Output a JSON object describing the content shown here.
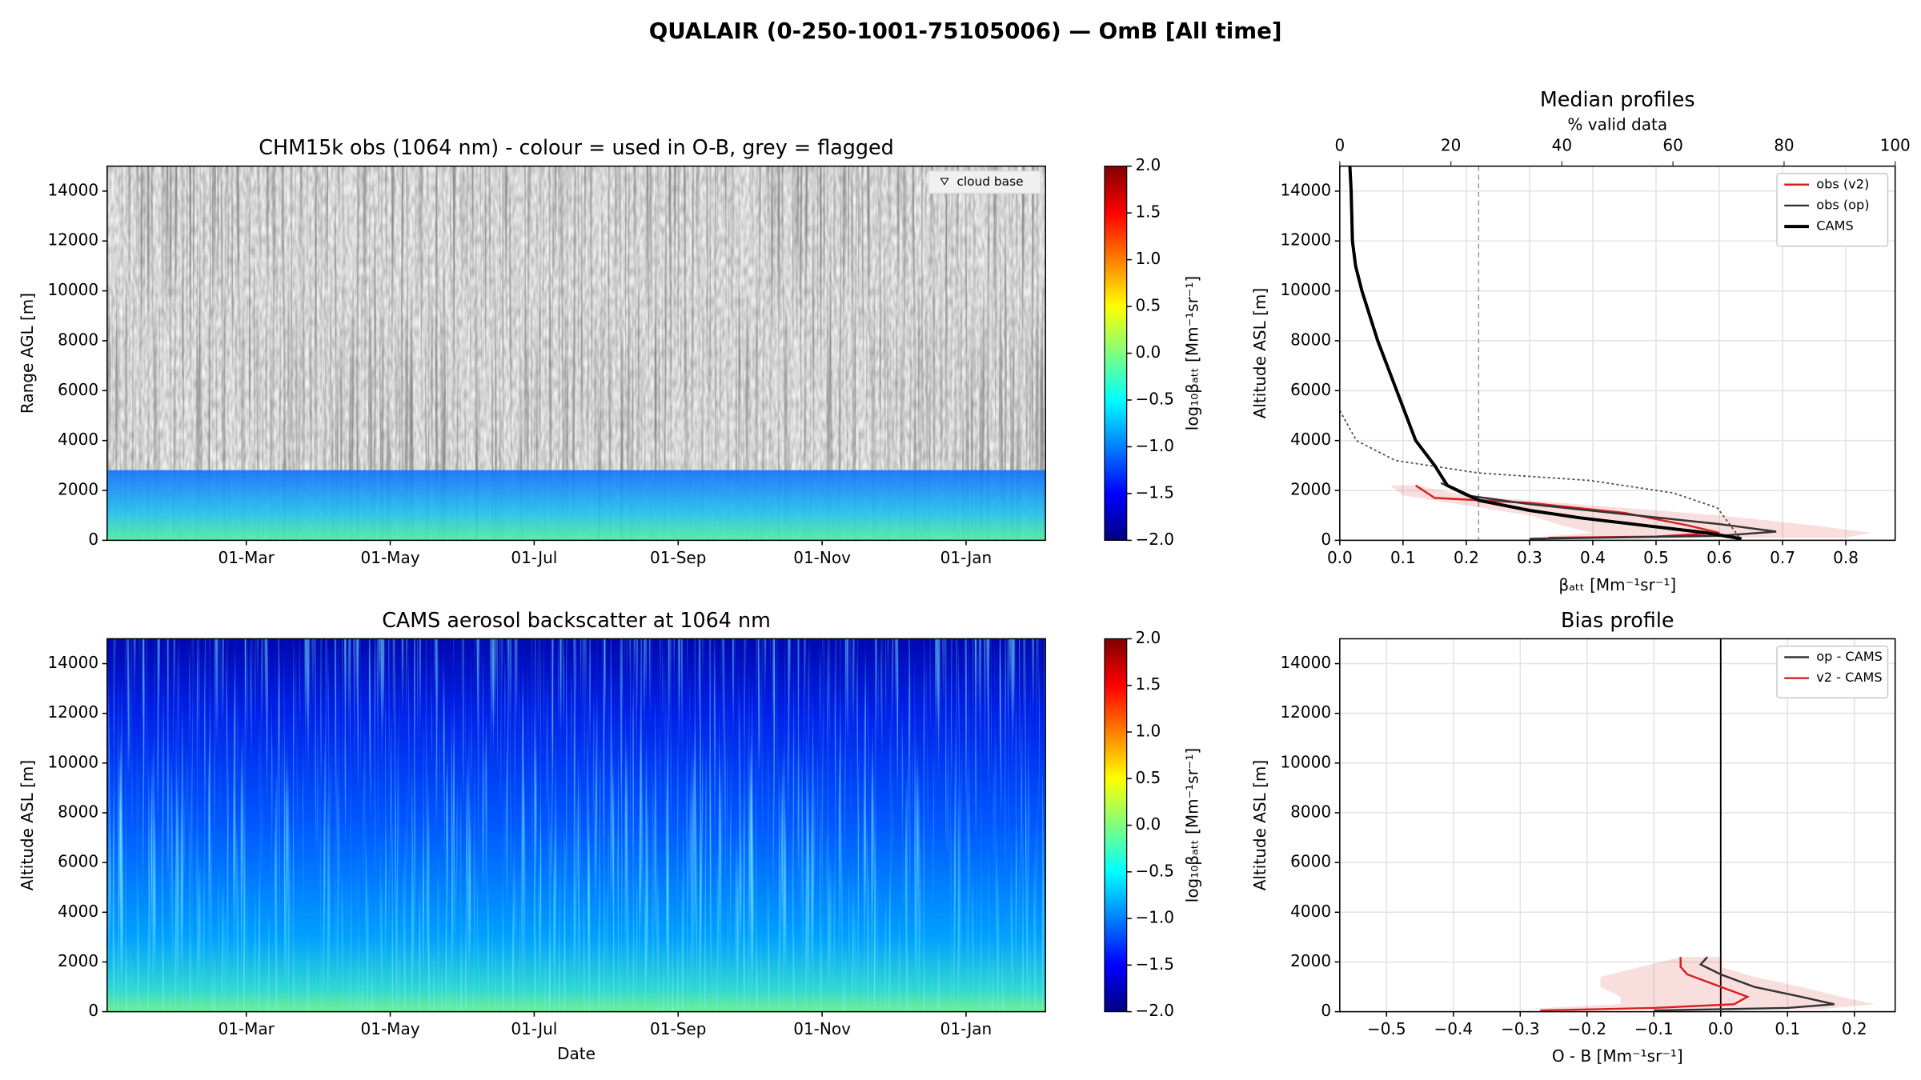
{
  "title": "QUALAIR (0-250-1001-75105006) — OmB [All time]",
  "chart_data": [
    {
      "type": "heatmap",
      "title": "CHM15k obs (1064 nm) - colour = used in O-B, grey = flagged",
      "ylabel": "Range AGL [m]",
      "ylim": [
        0,
        15000
      ],
      "yticks": [
        0,
        2000,
        4000,
        6000,
        8000,
        10000,
        12000,
        14000
      ],
      "xticks": [
        "01-Mar",
        "01-May",
        "01-Jul",
        "01-Sep",
        "01-Nov",
        "01-Jan"
      ],
      "legend": {
        "label": "cloud base",
        "position": "upper right"
      },
      "colorbar": {
        "label": "log₁₀βₐₜₜ [Mm⁻¹sr⁻¹]",
        "clim": [
          -2,
          2
        ],
        "colormap": "jet",
        "ticks": [
          {
            "value": -2,
            "label": "−2.0"
          },
          {
            "value": -1.5,
            "label": "−1.5"
          },
          {
            "value": -1,
            "label": "−1.0"
          },
          {
            "value": -0.5,
            "label": "−0.5"
          },
          {
            "value": 0,
            "label": "0.0"
          },
          0.5,
          {
            "value": 1,
            "label": "1.0"
          },
          1.5,
          {
            "value": 2,
            "label": "2.0"
          }
        ]
      }
    },
    {
      "type": "heatmap",
      "title": "CAMS aerosol backscatter at 1064 nm",
      "xlabel": "Date",
      "ylabel": "Altitude ASL [m]",
      "ylim": [
        0,
        15000
      ],
      "yticks": [
        0,
        2000,
        4000,
        6000,
        8000,
        10000,
        12000,
        14000
      ],
      "xticks": [
        "01-Mar",
        "01-May",
        "01-Jul",
        "01-Sep",
        "01-Nov",
        "01-Jan"
      ],
      "colorbar": {
        "label": "log₁₀βₐₜₜ [Mm⁻¹sr⁻¹]",
        "clim": [
          -2,
          2
        ],
        "colormap": "jet",
        "ticks": [
          {
            "value": -2,
            "label": "−2.0"
          },
          {
            "value": -1.5,
            "label": "−1.5"
          },
          {
            "value": -1,
            "label": "−1.0"
          },
          {
            "value": -0.5,
            "label": "−0.5"
          },
          {
            "value": 0,
            "label": "0.0"
          },
          0.5,
          {
            "value": 1,
            "label": "1.0"
          },
          1.5,
          {
            "value": 2,
            "label": "2.0"
          }
        ]
      }
    },
    {
      "type": "line",
      "title": "Median profiles",
      "xlabel": "βₐₜₜ [Mm⁻¹sr⁻¹]",
      "ylabel": "Altitude ASL [m]",
      "xlim": [
        0,
        0.878
      ],
      "xticks": [
        {
          "value": 0,
          "label": "0.0"
        },
        0.1,
        0.2,
        0.3,
        0.4,
        0.5,
        0.6,
        0.7,
        0.8
      ],
      "ylim": [
        0,
        15000
      ],
      "yticks": [
        0,
        2000,
        4000,
        6000,
        8000,
        10000,
        12000,
        14000
      ],
      "grid": true,
      "legend": "upper right",
      "x2label": "% valid data",
      "x2lim": [
        0,
        100
      ],
      "x2ticks": [
        0,
        20,
        40,
        60,
        80,
        100
      ],
      "threshold": 25,
      "valid_data": {
        "color": "#555555",
        "x2": [
          0,
          3,
          10,
          25,
          45,
          60,
          68,
          70,
          72
        ],
        "y": [
          5200,
          4000,
          3200,
          2700,
          2400,
          1900,
          1300,
          700,
          100
        ]
      },
      "series": [
        {
          "name": "obs (v2)",
          "color": "#d62020",
          "linewidth": 1.6,
          "x": [
            0.12,
            0.15,
            0.3,
            0.45,
            0.55,
            0.6,
            0.5,
            0.33
          ],
          "y": [
            2200,
            1700,
            1500,
            1100,
            600,
            300,
            150,
            100
          ],
          "band": {
            "x_low": [
              0.08,
              0.1,
              0.2,
              0.3,
              0.35,
              0.4,
              0.3
            ],
            "x_high": [
              0.12,
              0.2,
              0.4,
              0.6,
              0.75,
              0.84,
              0.8
            ],
            "y": [
              2200,
              1800,
              1400,
              1000,
              600,
              300,
              100
            ]
          }
        },
        {
          "name": "obs (op)",
          "color": "#333333",
          "linewidth": 1.6,
          "x": [
            0.16,
            0.2,
            0.3,
            0.45,
            0.6,
            0.69,
            0.6,
            0.3
          ],
          "y": [
            2300,
            1800,
            1450,
            1050,
            650,
            350,
            180,
            60
          ]
        },
        {
          "name": "CAMS",
          "color": "#000000",
          "linewidth": 2.6,
          "x": [
            0.635,
            0.58,
            0.48,
            0.38,
            0.3,
            0.22,
            0.17,
            0.15,
            0.12,
            0.09,
            0.06,
            0.035,
            0.025,
            0.02,
            0.018,
            0.016
          ],
          "y": [
            60,
            300,
            600,
            900,
            1200,
            1600,
            2200,
            3000,
            4000,
            6000,
            8000,
            10000,
            11000,
            12000,
            14000,
            15000
          ]
        }
      ]
    },
    {
      "type": "line",
      "title": "Bias profile",
      "xlabel": "O - B [Mm⁻¹sr⁻¹]",
      "ylabel": "Altitude ASL [m]",
      "xlim": [
        -0.57,
        0.261
      ],
      "xticks": [
        {
          "value": -0.5,
          "label": "−0.5"
        },
        {
          "value": -0.4,
          "label": "−0.4"
        },
        {
          "value": -0.3,
          "label": "−0.3"
        },
        {
          "value": -0.2,
          "label": "−0.2"
        },
        {
          "value": -0.1,
          "label": "−0.1"
        },
        {
          "value": 0,
          "label": "0.0"
        },
        0.1,
        0.2
      ],
      "ylim": [
        0,
        15000
      ],
      "yticks": [
        0,
        2000,
        4000,
        6000,
        8000,
        10000,
        12000,
        14000
      ],
      "grid": true,
      "legend": "upper right",
      "zero_line": 0,
      "series": [
        {
          "name": "op - CAMS",
          "color": "#333333",
          "linewidth": 1.6,
          "x": [
            -0.02,
            -0.03,
            0.0,
            0.05,
            0.12,
            0.17,
            0.1,
            -0.1
          ],
          "y": [
            2200,
            1900,
            1500,
            1000,
            600,
            300,
            150,
            50
          ]
        },
        {
          "name": "v2 - CAMS",
          "color": "#d62020",
          "linewidth": 1.6,
          "x": [
            -0.06,
            -0.06,
            -0.05,
            0.0,
            0.04,
            0.02,
            -0.1,
            -0.27
          ],
          "y": [
            2200,
            1800,
            1500,
            1000,
            600,
            300,
            150,
            50
          ],
          "band": {
            "x_low": [
              -0.06,
              -0.12,
              -0.18,
              -0.18,
              -0.15,
              -0.15,
              -0.3
            ],
            "x_high": [
              0.0,
              0.0,
              0.05,
              0.12,
              0.18,
              0.23,
              0.15
            ],
            "y": [
              2200,
              1800,
              1400,
              1000,
              600,
              300,
              100
            ]
          }
        }
      ]
    }
  ]
}
